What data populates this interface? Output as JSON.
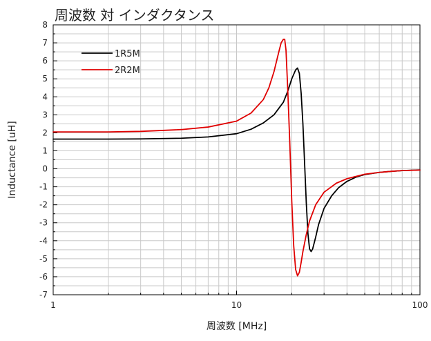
{
  "chart_data": {
    "type": "line",
    "title": "周波数 対 インダクタンス",
    "xlabel": "周波数 [MHz]",
    "ylabel": "Inductance [uH]",
    "x_scale": "log",
    "xlim": [
      1,
      100
    ],
    "ylim": [
      -7,
      8
    ],
    "x_ticks": [
      1,
      10,
      100
    ],
    "x_tick_labels": [
      "1",
      "10",
      "100"
    ],
    "y_ticks": [
      -7,
      -6,
      -5,
      -4,
      -3,
      -2,
      -1,
      0,
      1,
      2,
      3,
      4,
      5,
      6,
      7,
      8
    ],
    "y_tick_labels": [
      "-7",
      "-6",
      "-5",
      "-4",
      "-3",
      "-2",
      "-1",
      "0",
      "1",
      "2",
      "3",
      "4",
      "5",
      "6",
      "7",
      "8"
    ],
    "grid": true,
    "legend_position": "top-left",
    "series": [
      {
        "name": "1R5M",
        "color": "#000000",
        "x": [
          1,
          2,
          3,
          5,
          7,
          10,
          12,
          14,
          16,
          18,
          19,
          20,
          21,
          21.5,
          22,
          22.5,
          23,
          23.5,
          24,
          24.5,
          25,
          25.5,
          26,
          27,
          28,
          30,
          33,
          36,
          40,
          45,
          50,
          60,
          70,
          80,
          100
        ],
        "y": [
          1.65,
          1.65,
          1.66,
          1.7,
          1.77,
          1.95,
          2.2,
          2.55,
          3.0,
          3.7,
          4.3,
          5.0,
          5.5,
          5.6,
          5.3,
          4.2,
          2.5,
          0.3,
          -1.9,
          -3.6,
          -4.45,
          -4.6,
          -4.45,
          -3.8,
          -3.1,
          -2.2,
          -1.5,
          -1.05,
          -0.7,
          -0.45,
          -0.32,
          -0.2,
          -0.14,
          -0.1,
          -0.06
        ]
      },
      {
        "name": "2R2M",
        "color": "#e00000",
        "x": [
          1,
          2,
          3,
          5,
          7,
          10,
          12,
          14,
          15,
          16,
          17,
          17.5,
          18,
          18.3,
          18.6,
          19,
          19.5,
          20,
          20.5,
          21,
          21.5,
          22,
          22.5,
          23,
          24,
          25,
          27,
          30,
          35,
          40,
          50,
          60,
          70,
          80,
          100
        ],
        "y": [
          2.05,
          2.05,
          2.08,
          2.18,
          2.32,
          2.65,
          3.1,
          3.85,
          4.5,
          5.4,
          6.5,
          7.0,
          7.2,
          7.2,
          6.6,
          4.5,
          1.5,
          -1.8,
          -4.3,
          -5.6,
          -5.95,
          -5.75,
          -5.2,
          -4.6,
          -3.65,
          -2.9,
          -2.0,
          -1.3,
          -0.8,
          -0.55,
          -0.3,
          -0.2,
          -0.14,
          -0.1,
          -0.07
        ]
      }
    ]
  }
}
